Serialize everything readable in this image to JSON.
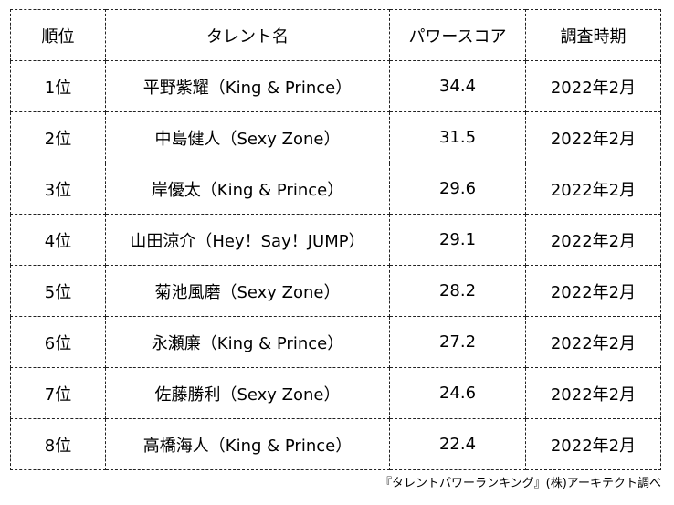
{
  "table": {
    "headers": [
      "順位",
      "タレント名",
      "パワースコア",
      "調査時期"
    ],
    "rows": [
      {
        "rank": "1位",
        "name": "平野紫耀（King & Prince）",
        "score": "34.4",
        "date": "2022年2月"
      },
      {
        "rank": "2位",
        "name": "中島健人（Sexy Zone）",
        "score": "31.5",
        "date": "2022年2月"
      },
      {
        "rank": "3位",
        "name": "岸優太（King & Prince）",
        "score": "29.6",
        "date": "2022年2月"
      },
      {
        "rank": "4位",
        "name": "山田涼介（Hey！Say！JUMP）",
        "score": "29.1",
        "date": "2022年2月"
      },
      {
        "rank": "5位",
        "name": "菊池風磨（Sexy Zone）",
        "score": "28.2",
        "date": "2022年2月"
      },
      {
        "rank": "6位",
        "name": "永瀬廉（King & Prince）",
        "score": "27.2",
        "date": "2022年2月"
      },
      {
        "rank": "7位",
        "name": "佐藤勝利（Sexy Zone）",
        "score": "24.6",
        "date": "2022年2月"
      },
      {
        "rank": "8位",
        "name": "高橋海人（King & Prince）",
        "score": "22.4",
        "date": "2022年2月"
      }
    ]
  },
  "source": "『タレントパワーランキング』(株)アーキテクト調べ"
}
